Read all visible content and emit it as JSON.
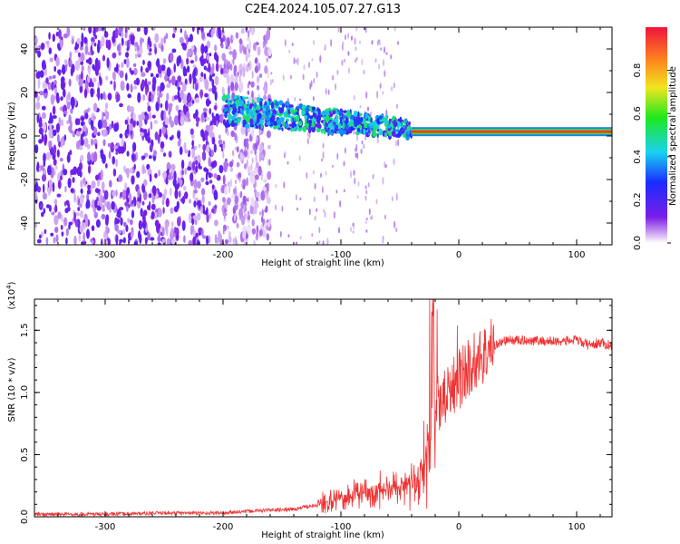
{
  "title": "C2E4.2024.105.07.27.G13",
  "chart_data": [
    {
      "type": "heatmap",
      "xlabel": "Height of straight line (km)",
      "ylabel": "Frequency (Hz)",
      "xlim": [
        -360,
        130
      ],
      "ylim": [
        -50,
        50
      ],
      "x_ticks": [
        -300,
        -200,
        -100,
        0,
        100
      ],
      "y_ticks": [
        -40,
        -20,
        0,
        20,
        40
      ],
      "colorbar": {
        "label": "Normalized spectral amplitude",
        "range": [
          0,
          1
        ],
        "ticks": [
          "0.0",
          "0.2",
          "0.4",
          "0.6",
          "0.8"
        ],
        "colormap": [
          "#ffffff",
          "#c89cf0",
          "#7a1ee8",
          "#1a2cff",
          "#19d2f0",
          "#1ee81e",
          "#f0e61e",
          "#ff8a1e",
          "#f0143c"
        ]
      },
      "regions": [
        {
          "name": "noise",
          "x_range": [
            -360,
            -200
          ],
          "freq_range": [
            -50,
            50
          ],
          "amplitude": 0.08
        },
        {
          "name": "signal-band",
          "x_range": [
            -200,
            -40
          ],
          "freq_start": 12,
          "freq_end": 3,
          "amplitude": 0.35
        },
        {
          "name": "carrier",
          "x_range": [
            -40,
            130
          ],
          "freq": 2,
          "amplitude": 0.95
        }
      ]
    },
    {
      "type": "line",
      "xlabel": "Height of straight line (km)",
      "ylabel": "SNR (10 * v/v)",
      "y_multiplier": "(x10^4)",
      "xlim": [
        -360,
        130
      ],
      "ylim": [
        0,
        1.75
      ],
      "x_ticks": [
        -300,
        -200,
        -100,
        0,
        100
      ],
      "y_ticks": [
        "0.0",
        "0.5",
        "1.0",
        "1.5"
      ],
      "series": [
        {
          "color": "#f03232",
          "x": [
            -360,
            -300,
            -250,
            -200,
            -170,
            -140,
            -110,
            -90,
            -70,
            -50,
            -35,
            -25,
            -20,
            -10,
            0,
            10,
            20,
            30,
            40,
            60,
            80,
            100,
            110,
            120,
            128
          ],
          "y": [
            0.02,
            0.02,
            0.03,
            0.03,
            0.05,
            0.06,
            0.12,
            0.18,
            0.2,
            0.25,
            0.3,
            0.55,
            0.9,
            1.0,
            1.1,
            1.22,
            1.3,
            1.38,
            1.42,
            1.42,
            1.41,
            1.42,
            1.38,
            1.4,
            1.38
          ]
        }
      ]
    }
  ]
}
